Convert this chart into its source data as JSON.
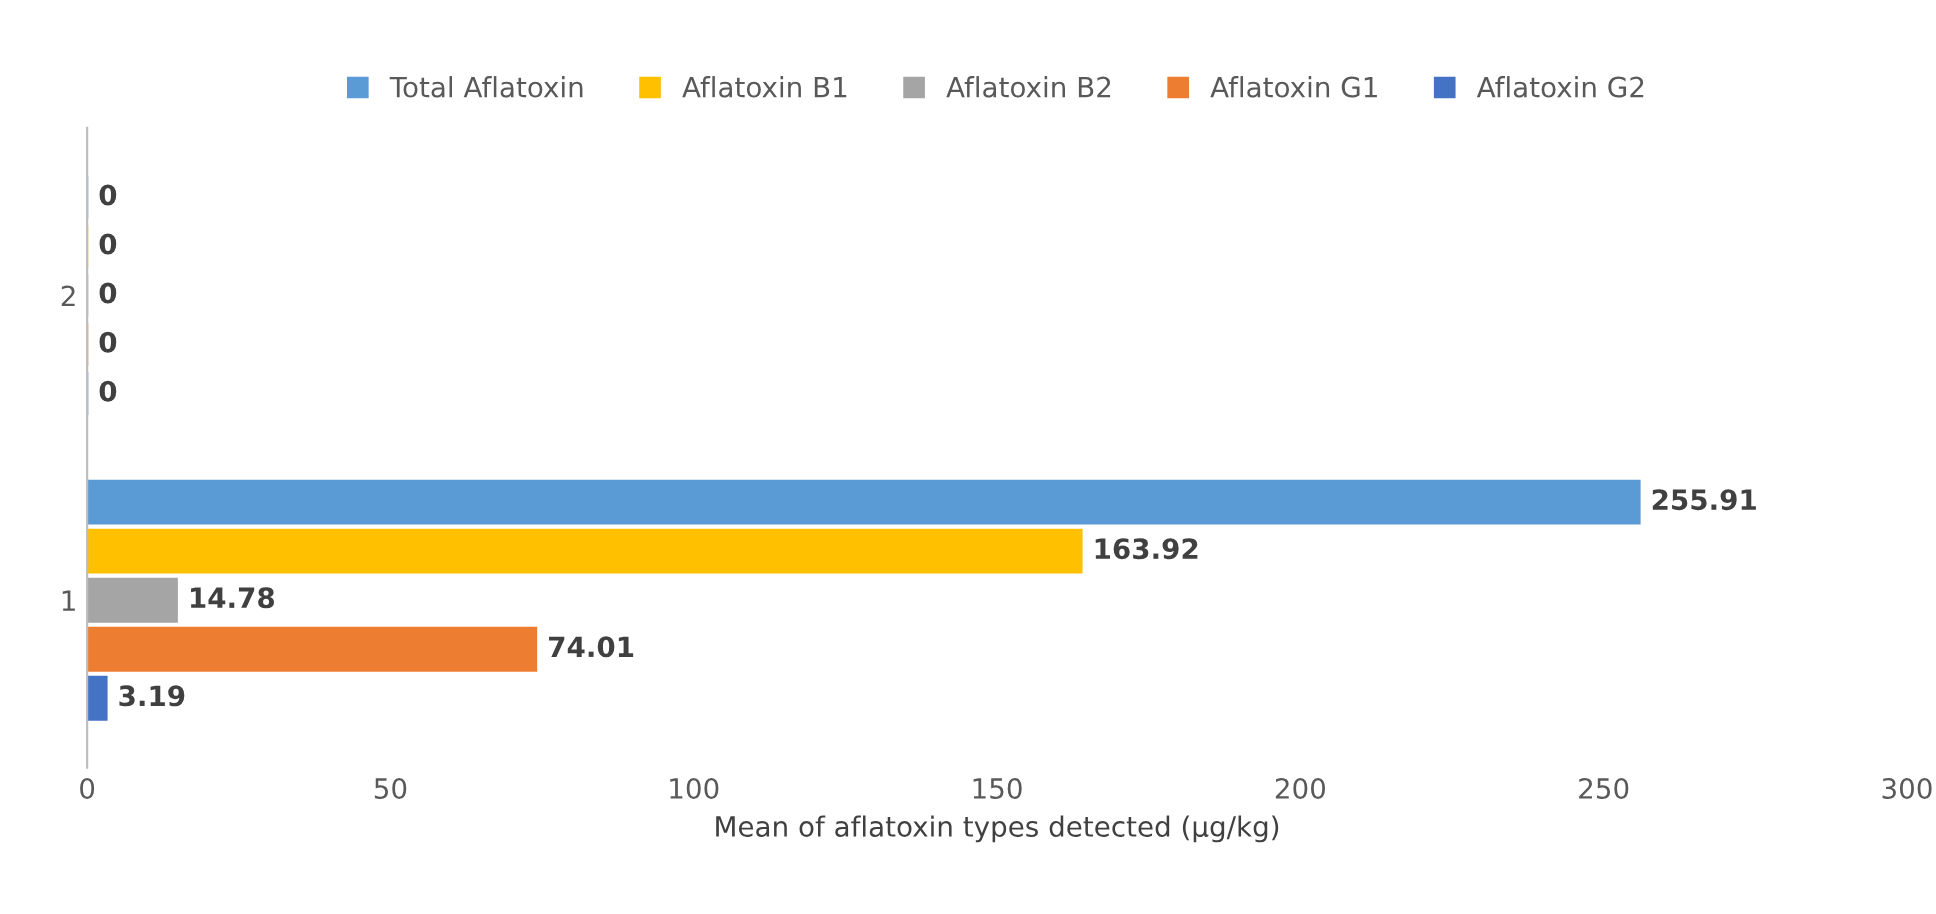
{
  "chart_data": {
    "type": "bar",
    "orientation": "horizontal",
    "xlabel": "Mean of aflatoxin types detected (µg/kg)",
    "categories": [
      "2",
      "1"
    ],
    "series": [
      {
        "name": "Total Aflatoxin",
        "color": "#5b9bd5",
        "values": [
          0,
          255.91
        ]
      },
      {
        "name": "Aflatoxin B1",
        "color": "#ffc000",
        "values": [
          0,
          163.92
        ]
      },
      {
        "name": "Aflatoxin B2",
        "color": "#a5a5a5",
        "values": [
          0,
          14.78
        ]
      },
      {
        "name": "Aflatoxin G1",
        "color": "#ed7d31",
        "values": [
          0,
          74.01
        ]
      },
      {
        "name": "Aflatoxin G2",
        "color": "#4472c4",
        "values": [
          0,
          3.19
        ]
      }
    ],
    "xlim": [
      0,
      300
    ],
    "xticks": [
      0,
      50,
      100,
      150,
      200,
      250,
      300
    ],
    "data_labels": true,
    "grid": false,
    "legend": "top"
  }
}
